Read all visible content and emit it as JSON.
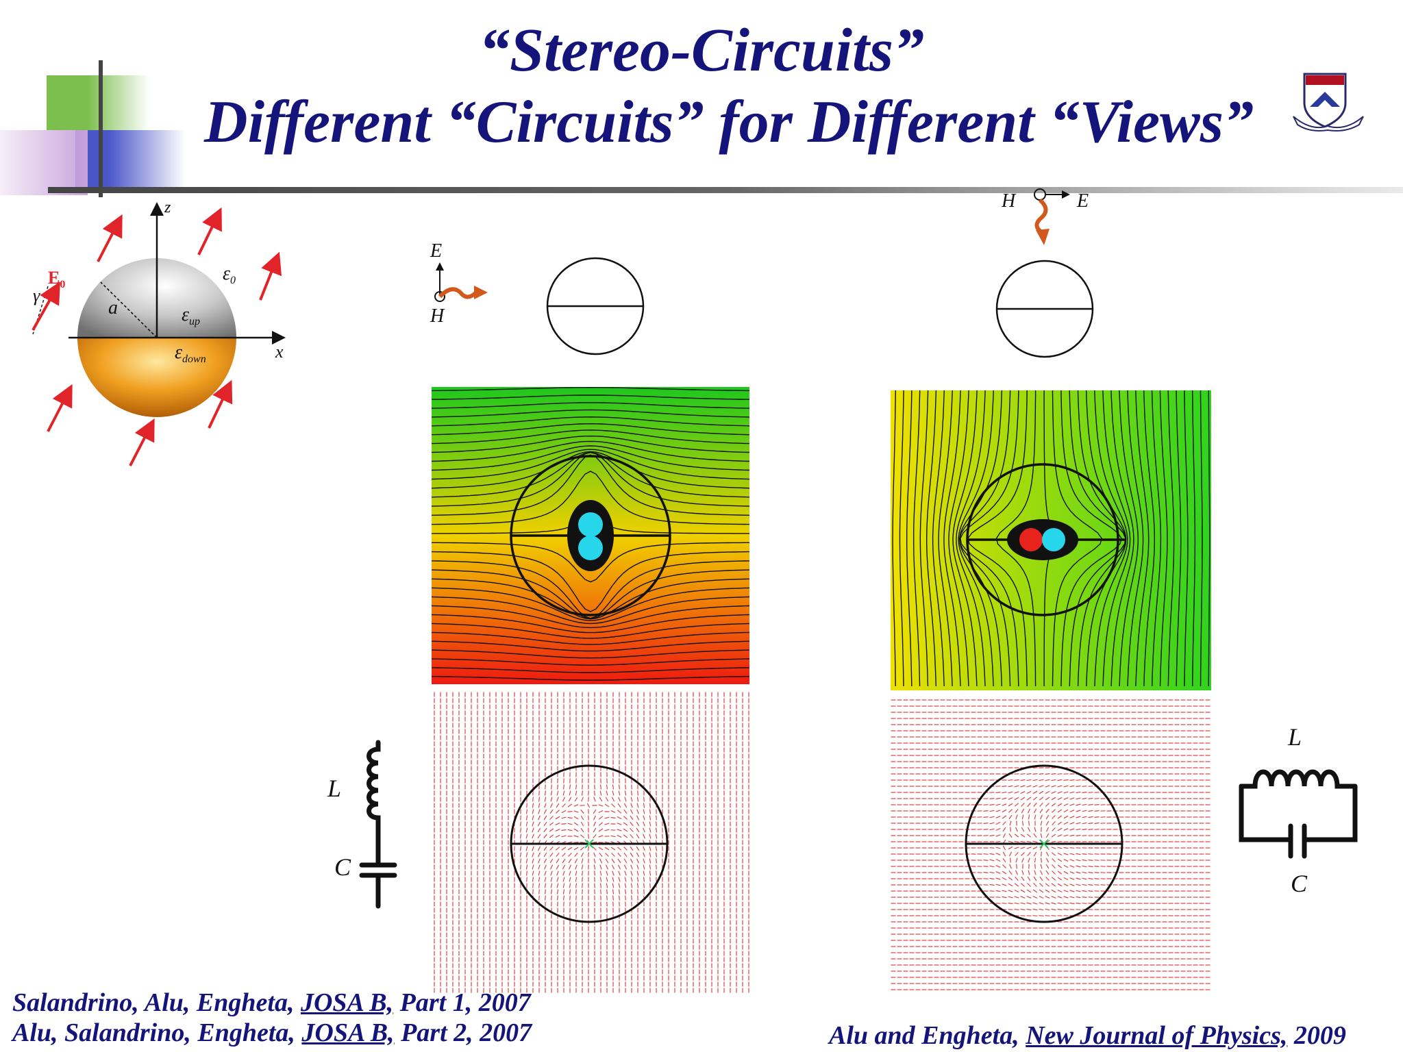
{
  "title": {
    "line1": "“Stereo-Circuits”",
    "line2": "Different “Circuits” for Different “Views”"
  },
  "sphere_diagram": {
    "axis_z": "z",
    "axis_x": "x",
    "field_label": "E",
    "field_sub": "0",
    "angle": "γ",
    "radius": "a",
    "eps_outside": "ε",
    "eps_outside_sub": "0",
    "eps_up": "ε",
    "eps_up_sub": "up",
    "eps_down": "ε",
    "eps_down_sub": "down"
  },
  "left_view": {
    "E": "E",
    "H": "H"
  },
  "right_view": {
    "H": "H",
    "E": "E"
  },
  "circuits": {
    "series": {
      "L": "L",
      "C": "C"
    },
    "parallel": {
      "L": "L",
      "C": "C"
    }
  },
  "citations": {
    "c1": {
      "authors": "Salandrino, Alu, Engheta, ",
      "journal": "JOSA B,",
      "rest": " Part 1, 2007"
    },
    "c2": {
      "authors": "Alu, Salandrino, Engheta, ",
      "journal": "JOSA B,",
      "rest": " Part 2, 2007"
    },
    "c3": {
      "authors": "Alu and Engheta, ",
      "journal": "New Journal of Physics,",
      "rest": " 2009"
    }
  },
  "colors": {
    "title": "#14147a",
    "arrow": "#e0242a",
    "wave": "#d2581c",
    "dipole_pos": "#28d6ec",
    "dipole_neg": "#e8231c"
  }
}
